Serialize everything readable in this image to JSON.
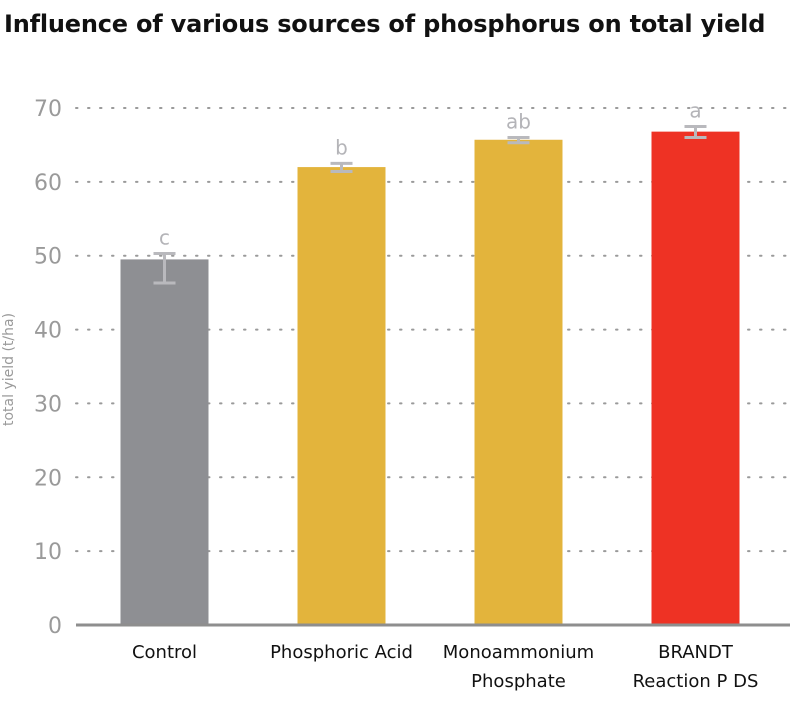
{
  "chart_data": {
    "type": "bar",
    "title": "Influence of various sources of phosphorus on total yield",
    "xlabel": "",
    "ylabel": "total yield (t/ha)",
    "ylim": [
      0,
      70
    ],
    "yticks": [
      0,
      10,
      20,
      30,
      40,
      50,
      60,
      70
    ],
    "grid": true,
    "categories": [
      [
        "Control"
      ],
      [
        "Phosphoric Acid"
      ],
      [
        "Monoammonium",
        "Phosphate"
      ],
      [
        "BRANDT",
        "Reaction P DS"
      ]
    ],
    "values": [
      49.5,
      62.0,
      65.7,
      66.8
    ],
    "error_low": [
      46.3,
      61.4,
      65.3,
      66.0
    ],
    "error_high": [
      50.3,
      62.5,
      66.0,
      67.5
    ],
    "significance_letters": [
      "c",
      "b",
      "ab",
      "a"
    ],
    "bar_colors": [
      "#8e8f93",
      "#e3b43c",
      "#e3b43c",
      "#ee3224"
    ]
  }
}
